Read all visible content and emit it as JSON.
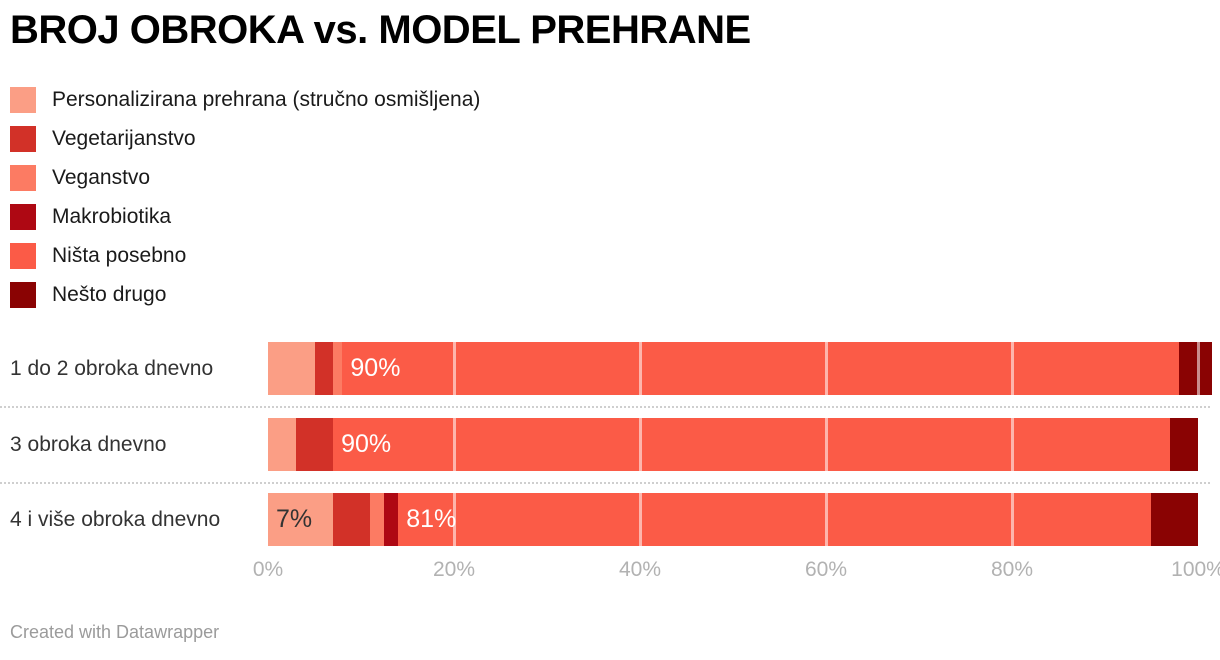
{
  "title": "BROJ OBROKA vs. MODEL PREHRANE",
  "footer": {
    "text": "Created with Datawrapper"
  },
  "colors": {
    "background": "#ffffff",
    "title_text": "#000000",
    "legend_text": "#1a1a1a",
    "row_label_text": "#333333",
    "axis_tick_text": "#b2b2b2",
    "separator": "#cfcfcf",
    "grid_overlay": "rgba(255,255,255,0.55)",
    "footer_text": "#9b9b9b"
  },
  "chart_data": {
    "type": "bar",
    "variant": "horizontal-stacked",
    "title": "BROJ OBROKA vs. MODEL PREHRANE",
    "categories": [
      "1 do 2 obroka dnevno",
      "3 obroka dnevno",
      "4 i više obroka dnevno"
    ],
    "series": [
      {
        "name": "Personalizirana prehrana (stručno osmišljena)",
        "color": "#FB9E85",
        "values": [
          5,
          3,
          7
        ]
      },
      {
        "name": "Vegetarijanstvo",
        "color": "#D23128",
        "values": [
          2,
          4,
          4
        ]
      },
      {
        "name": "Veganstvo",
        "color": "#FC7B63",
        "values": [
          1,
          0,
          1.5
        ]
      },
      {
        "name": "Makrobiotika",
        "color": "#AE0813",
        "values": [
          0,
          0,
          1.5
        ]
      },
      {
        "name": "Ništa posebno",
        "color": "#FB5B47",
        "values": [
          90,
          90,
          81
        ]
      },
      {
        "name": "Nešto drugo",
        "color": "#8A0303",
        "values": [
          3.5,
          3,
          5
        ]
      }
    ],
    "bar_labels": [
      [
        "",
        "",
        "",
        "",
        "90%",
        ""
      ],
      [
        "",
        "",
        "",
        "",
        "90%",
        ""
      ],
      [
        "7%",
        "",
        "",
        "",
        "81%",
        ""
      ]
    ],
    "x_ticks": [
      "0%",
      "20%",
      "40%",
      "60%",
      "80%",
      "100%"
    ],
    "x_tick_values": [
      0,
      20,
      40,
      60,
      80,
      100
    ],
    "x_range": [
      0,
      100
    ],
    "grid": "vertical-white-overlay-on-bars",
    "legend_position": "top-left"
  }
}
